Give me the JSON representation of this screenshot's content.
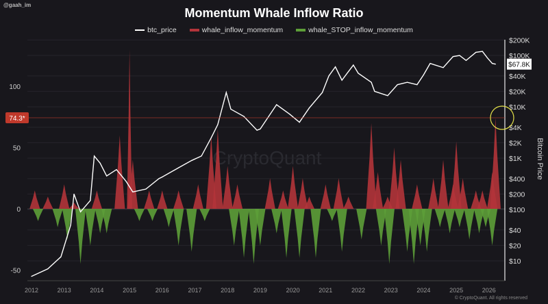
{
  "handle": "@gaah_im",
  "footer": "© CryptoQuant. All rights reserved",
  "watermark": "CryptoQuant",
  "chart_data": {
    "type": "line",
    "title": "Momentum Whale Inflow Ratio",
    "legend_placement": "top",
    "grid": true,
    "xlabel": "",
    "ylabel_left": "",
    "ylabel_right": "Bitcoin Price",
    "x_ticks": [
      "2012",
      "2013",
      "2014",
      "2015",
      "2016",
      "2017",
      "2018",
      "2019",
      "2020",
      "2021",
      "2022",
      "2023",
      "2024",
      "2025",
      "2026"
    ],
    "xlim": [
      2011.9,
      2026.5
    ],
    "y_left_ticks": [
      "100",
      "50",
      "0",
      "-50"
    ],
    "y_left_lim": [
      -58,
      140
    ],
    "y_right_ticks": [
      "$200K",
      "$100K",
      "$40K",
      "$20K",
      "$10K",
      "$4K",
      "$2K",
      "$1K",
      "$400",
      "$200",
      "$100",
      "$40",
      "$20",
      "$10"
    ],
    "y_right_scale": "log",
    "highlight_value_label": "74.3*",
    "highlight_value": 74.3,
    "last_price_label": "$67.8K",
    "colors": {
      "btc_price": "#ffffff",
      "whale_inflow_momentum": "#b3343a",
      "whale_STOP_inflow_momentum": "#5d9e38",
      "highlight": "#c0392b",
      "annotation_circle": "#e6e34a"
    },
    "series": [
      {
        "name": "btc_price",
        "axis": "right",
        "x": [
          2012.0,
          2012.5,
          2012.9,
          2013.2,
          2013.3,
          2013.5,
          2013.8,
          2013.92,
          2014.1,
          2014.3,
          2014.6,
          2014.9,
          2015.1,
          2015.5,
          2015.9,
          2016.0,
          2016.5,
          2016.9,
          2017.2,
          2017.5,
          2017.7,
          2017.96,
          2018.1,
          2018.5,
          2018.9,
          2019.0,
          2019.5,
          2019.9,
          2020.2,
          2020.5,
          2020.9,
          2021.1,
          2021.3,
          2021.5,
          2021.85,
          2022.0,
          2022.4,
          2022.5,
          2022.9,
          2023.2,
          2023.5,
          2023.8,
          2024.0,
          2024.2,
          2024.6,
          2024.9,
          2025.1,
          2025.3,
          2025.6,
          2025.8,
          2025.95,
          2026.1,
          2026.2
        ],
        "values": [
          5,
          7,
          12,
          50,
          200,
          90,
          150,
          1100,
          800,
          450,
          600,
          350,
          220,
          250,
          400,
          430,
          650,
          900,
          1100,
          2500,
          4500,
          19000,
          9000,
          6500,
          3500,
          3700,
          11000,
          7200,
          5000,
          9500,
          19000,
          40000,
          60000,
          33000,
          65000,
          45000,
          30000,
          20000,
          16500,
          27000,
          30000,
          27000,
          42000,
          70000,
          58000,
          95000,
          100000,
          80000,
          115000,
          120000,
          90000,
          70000,
          67800
        ]
      },
      {
        "name": "whale_inflow_momentum",
        "axis": "left",
        "x": [
          2012.1,
          2012.5,
          2013.0,
          2013.3,
          2014.0,
          2014.7,
          2015.0,
          2015.1,
          2015.6,
          2016.0,
          2016.5,
          2017.1,
          2017.5,
          2017.7,
          2018.0,
          2018.3,
          2019.3,
          2019.7,
          2020.0,
          2020.3,
          2020.5,
          2021.0,
          2021.4,
          2021.7,
          2022.4,
          2022.6,
          2022.9,
          2023.1,
          2023.3,
          2023.8,
          2024.3,
          2024.6,
          2024.9,
          2025.0,
          2025.2,
          2025.6,
          2025.8,
          2026.1,
          2026.2
        ],
        "values": [
          15,
          10,
          20,
          5,
          15,
          60,
          130,
          40,
          15,
          15,
          15,
          20,
          60,
          65,
          35,
          20,
          25,
          15,
          35,
          25,
          10,
          20,
          25,
          10,
          70,
          30,
          10,
          50,
          40,
          20,
          25,
          40,
          20,
          55,
          25,
          15,
          15,
          30,
          74.3
        ]
      },
      {
        "name": "whale_STOP_inflow_momentum",
        "axis": "left",
        "x": [
          2012.2,
          2012.8,
          2013.1,
          2013.5,
          2013.8,
          2014.1,
          2014.3,
          2015.3,
          2015.7,
          2016.2,
          2016.5,
          2016.9,
          2017.3,
          2018.2,
          2018.5,
          2018.8,
          2019.0,
          2019.5,
          2019.8,
          2020.2,
          2020.7,
          2021.2,
          2021.5,
          2022.1,
          2022.7,
          2022.95,
          2023.5,
          2023.7,
          2023.9,
          2024.1,
          2024.5,
          2024.8,
          2025.1,
          2025.4,
          2025.7,
          2025.9,
          2026.1
        ],
        "values": [
          -10,
          -15,
          -25,
          -45,
          -30,
          -20,
          -20,
          -10,
          -10,
          -15,
          -30,
          -35,
          -10,
          -30,
          -40,
          -45,
          -30,
          -20,
          -40,
          -40,
          -40,
          -10,
          -35,
          -25,
          -30,
          -45,
          -35,
          -45,
          -30,
          -35,
          -15,
          -20,
          -15,
          -25,
          -20,
          -15,
          -30
        ]
      }
    ]
  }
}
